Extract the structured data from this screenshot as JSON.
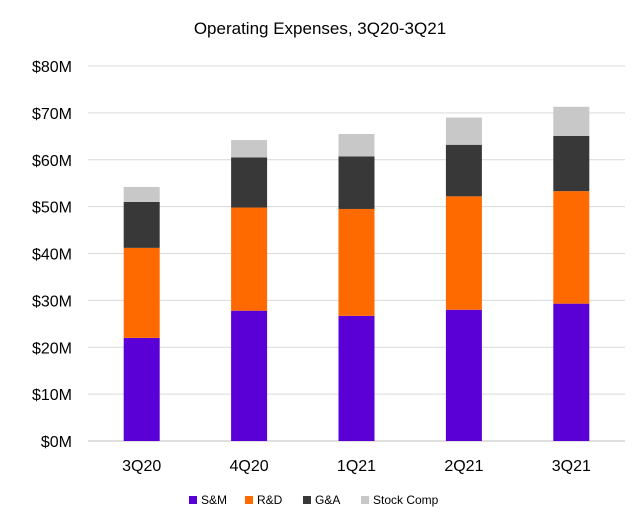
{
  "chart_data": {
    "type": "bar",
    "stacked": true,
    "title": "Operating Expenses, 3Q20-3Q21",
    "xlabel": "",
    "ylabel": "",
    "categories": [
      "3Q20",
      "4Q20",
      "1Q21",
      "2Q21",
      "3Q21"
    ],
    "ylim": [
      0,
      80
    ],
    "yticks": [
      0,
      10,
      20,
      30,
      40,
      50,
      60,
      70,
      80
    ],
    "ytick_labels": [
      "$0M",
      "$10M",
      "$20M",
      "$30M",
      "$40M",
      "$50M",
      "$60M",
      "$70M",
      "$80M"
    ],
    "grid": true,
    "legend_position": "bottom",
    "series": [
      {
        "name": "S&M",
        "color": "#5a00d6",
        "values": [
          22,
          27.8,
          26.7,
          28,
          29.3
        ]
      },
      {
        "name": "R&D",
        "color": "#ff6a00",
        "values": [
          19.2,
          22,
          22.8,
          24.2,
          24
        ]
      },
      {
        "name": "G&A",
        "color": "#383838",
        "values": [
          9.8,
          10.7,
          11.2,
          11,
          11.8
        ]
      },
      {
        "name": "Stock Comp",
        "color": "#c8c8c8",
        "values": [
          3.2,
          3.7,
          4.8,
          5.8,
          6.2
        ]
      }
    ]
  }
}
